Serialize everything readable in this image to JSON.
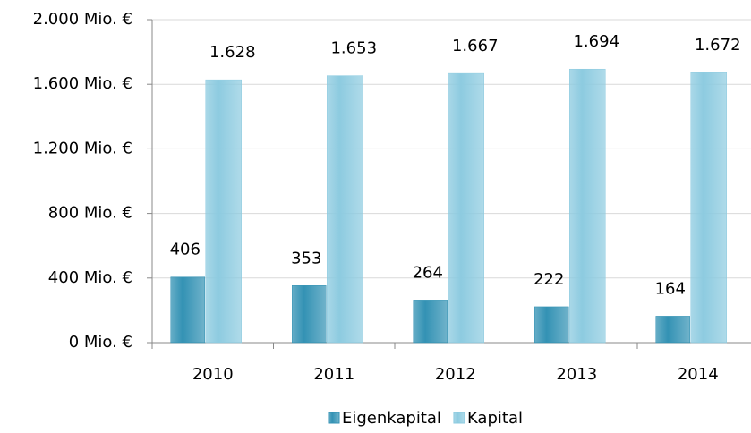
{
  "chart_data": {
    "type": "bar",
    "categories": [
      "2010",
      "2011",
      "2012",
      "2013",
      "2014"
    ],
    "series": [
      {
        "name": "Eigenkapital",
        "color": "#3392b4",
        "values": [
          406,
          353,
          264,
          222,
          164
        ]
      },
      {
        "name": "Kapital",
        "color": "#8dcbe0",
        "values": [
          1628,
          1653,
          1667,
          1694,
          1672
        ],
        "value_labels": [
          "1.628",
          "1.653",
          "1.667",
          "1.694",
          "1.672"
        ]
      }
    ],
    "ylim": [
      0,
      2000
    ],
    "yticks": [
      {
        "value": 0,
        "label": "0 Mio. €"
      },
      {
        "value": 400,
        "label": "400 Mio. €"
      },
      {
        "value": 800,
        "label": "800 Mio. €"
      },
      {
        "value": 1200,
        "label": "1.200 Mio. €"
      },
      {
        "value": 1600,
        "label": "1.600 Mio. €"
      },
      {
        "value": 2000,
        "label": "2.000 Mio. €"
      }
    ],
    "grid": true,
    "legend": "bottom"
  }
}
